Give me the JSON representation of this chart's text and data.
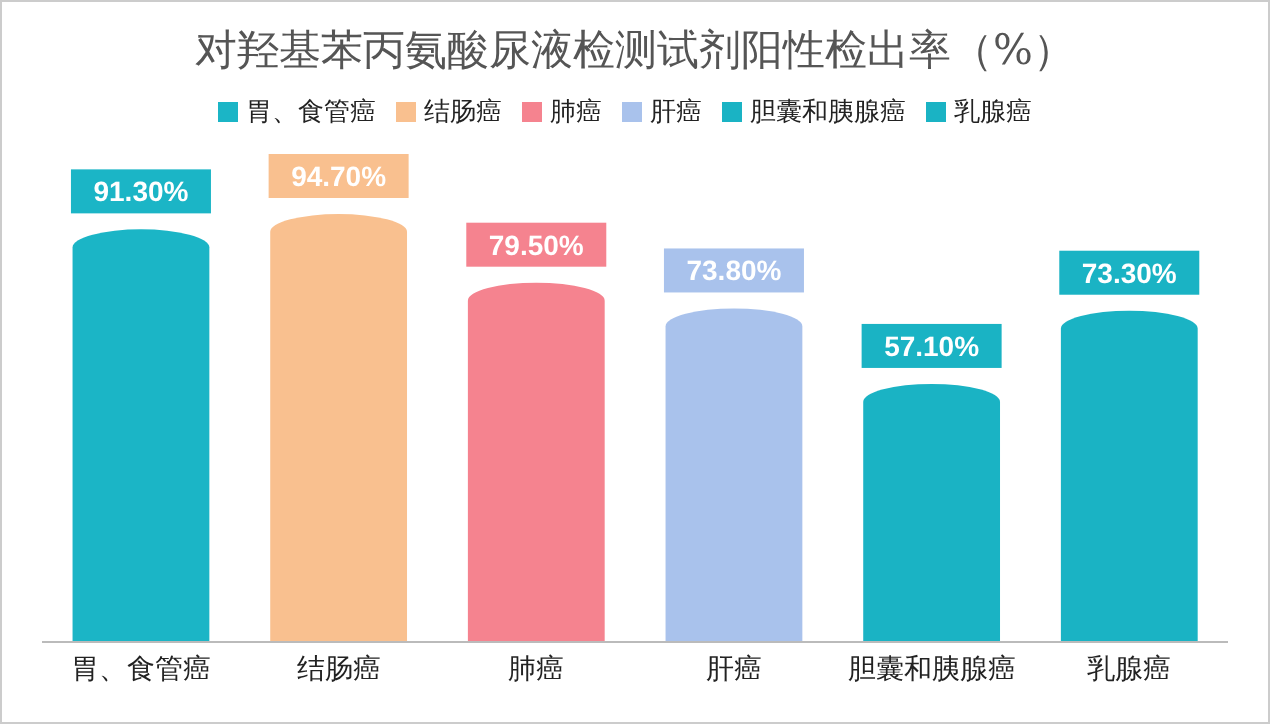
{
  "chart_data": {
    "type": "bar",
    "title": "对羟基苯丙氨酸尿液检测试剂阳性检出率（%）",
    "categories": [
      "胃、食管癌",
      "结肠癌",
      "肺癌",
      "肝癌",
      "胆囊和胰腺癌",
      "乳腺癌"
    ],
    "stacked": true,
    "series": [
      {
        "name": "胃、食管癌",
        "type": "bar",
        "color": "#1bb5c6",
        "values": [
          91.3,
          null,
          null,
          null,
          null,
          null
        ],
        "value_labels": [
          "91.30%",
          null,
          null,
          null,
          null,
          null
        ]
      },
      {
        "name": "结肠癌",
        "type": "bar",
        "color": "#f9c08f",
        "values": [
          null,
          94.7,
          null,
          null,
          null,
          null
        ],
        "value_labels": [
          null,
          "94.70%",
          null,
          null,
          null,
          null
        ]
      },
      {
        "name": "肺癌",
        "type": "bar",
        "color": "#f5838f",
        "values": [
          null,
          null,
          79.5,
          null,
          null,
          null
        ],
        "value_labels": [
          null,
          null,
          "79.50%",
          null,
          null,
          null
        ]
      },
      {
        "name": "肝癌",
        "type": "bar",
        "color": "#a9c2ec",
        "values": [
          null,
          null,
          null,
          73.8,
          null,
          null
        ],
        "value_labels": [
          null,
          null,
          null,
          "73.80%",
          null,
          null
        ]
      },
      {
        "name": "胆囊和胰腺癌",
        "type": "bar",
        "color": "#1ab3c4",
        "values": [
          null,
          null,
          null,
          null,
          57.1,
          null
        ],
        "value_labels": [
          null,
          null,
          null,
          null,
          "57.10%",
          null
        ]
      },
      {
        "name": "乳腺癌",
        "type": "bar",
        "color": "#1ab3c4",
        "values": [
          null,
          null,
          null,
          null,
          null,
          73.3
        ],
        "value_labels": [
          null,
          null,
          null,
          null,
          null,
          "73.30%"
        ]
      }
    ],
    "legend": "top"
  }
}
